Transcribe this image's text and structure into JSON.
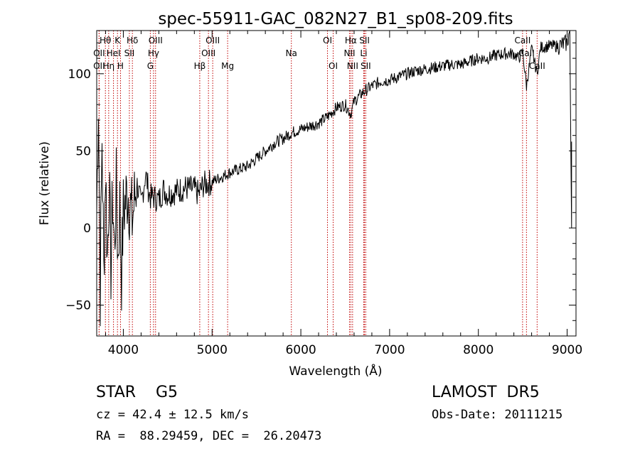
{
  "chart_data": {
    "type": "line",
    "title": "spec-55911-GAC_082N27_B1_sp08-209.fits",
    "xlabel": "Wavelength (Å)",
    "ylabel": "Flux (relative)",
    "xlim": [
      3700,
      9100
    ],
    "ylim": [
      -70,
      128
    ],
    "xticks": [
      4000,
      5000,
      6000,
      7000,
      8000,
      9000
    ],
    "yticks": [
      -50,
      0,
      50,
      100
    ],
    "grid": false,
    "series": [
      {
        "x": [
          3700,
          3720,
          3740,
          3760,
          3780,
          3800,
          3820,
          3840,
          3860,
          3880,
          3900,
          3920,
          3940,
          3960,
          3980,
          4000,
          4050,
          4100,
          4150,
          4200,
          4250,
          4300,
          4350,
          4400,
          4450,
          4500,
          4600,
          4700,
          4800,
          4850,
          4900,
          5000,
          5100,
          5200,
          5300,
          5400,
          5500,
          5600,
          5700,
          5800,
          5900,
          6000,
          6100,
          6200,
          6300,
          6400,
          6500,
          6563,
          6600,
          6700,
          6800,
          6900,
          7000,
          7100,
          7200,
          7300,
          7400,
          7500,
          7600,
          7700,
          7800,
          7900,
          8000,
          8100,
          8200,
          8300,
          8400,
          8450,
          8500,
          8542,
          8600,
          8662,
          8700,
          8800,
          8900,
          8950,
          9000,
          9030,
          9050
        ],
        "y": [
          10,
          85,
          -40,
          60,
          -30,
          40,
          -20,
          30,
          -25,
          20,
          -15,
          25,
          -20,
          15,
          -30,
          10,
          25,
          5,
          30,
          15,
          35,
          20,
          20,
          18,
          25,
          22,
          24,
          26,
          25,
          22,
          28,
          30,
          33,
          36,
          38,
          40,
          45,
          50,
          55,
          58,
          62,
          64,
          66,
          68,
          72,
          78,
          80,
          74,
          82,
          88,
          92,
          95,
          96,
          98,
          100,
          102,
          103,
          104,
          105,
          106,
          106,
          108,
          110,
          110,
          112,
          113,
          113,
          110,
          114,
          92,
          116,
          100,
          117,
          118,
          118,
          119,
          120,
          128,
          0
        ]
      }
    ],
    "line_marks": [
      {
        "name": "Hθ",
        "x": 3798,
        "row": 0
      },
      {
        "name": "K",
        "x": 3934,
        "row": 0
      },
      {
        "name": "Hδ",
        "x": 4102,
        "row": 0
      },
      {
        "name": "OIII",
        "x": 4363,
        "row": 0
      },
      {
        "name": "OIII",
        "x": 5007,
        "row": 0
      },
      {
        "name": "OI",
        "x": 6300,
        "row": 0
      },
      {
        "name": "Hα",
        "x": 6563,
        "row": 0
      },
      {
        "name": "SII",
        "x": 6717,
        "row": 0
      },
      {
        "name": "CaII",
        "x": 8498,
        "row": 0
      },
      {
        "name": "OII",
        "x": 3727,
        "row": 1
      },
      {
        "name": "HeI",
        "x": 3889,
        "row": 1
      },
      {
        "name": "SII",
        "x": 4068,
        "row": 1
      },
      {
        "name": "Hγ",
        "x": 4340,
        "row": 1
      },
      {
        "name": "OIII",
        "x": 4959,
        "row": 1
      },
      {
        "name": "Na",
        "x": 5893,
        "row": 1
      },
      {
        "name": "NII",
        "x": 6548,
        "row": 1
      },
      {
        "name": "Li",
        "x": 6708,
        "row": 1
      },
      {
        "name": "CaII",
        "x": 8542,
        "row": 1
      },
      {
        "name": "OII",
        "x": 3727,
        "row": 2
      },
      {
        "name": "Hη",
        "x": 3835,
        "row": 2
      },
      {
        "name": "H",
        "x": 3968,
        "row": 2
      },
      {
        "name": "G",
        "x": 4304,
        "row": 2
      },
      {
        "name": "Hβ",
        "x": 4861,
        "row": 2
      },
      {
        "name": "Mg",
        "x": 5175,
        "row": 2
      },
      {
        "name": "OI",
        "x": 6364,
        "row": 2
      },
      {
        "name": "NII",
        "x": 6583,
        "row": 2
      },
      {
        "name": "SII",
        "x": 6731,
        "row": 2
      },
      {
        "name": "CaII",
        "x": 8662,
        "row": 2
      }
    ]
  },
  "info": {
    "class": "STAR    G5",
    "survey": "LAMOST  DR5",
    "cz": "cz = 42.4 ± 12.5 km/s",
    "obs_date": "Obs-Date: 20111215",
    "coords": "RA =  88.29459, DEC =  26.20473"
  },
  "colors": {
    "axis": "#000000",
    "spectrum": "#000000",
    "line_marks": "#c00000"
  }
}
